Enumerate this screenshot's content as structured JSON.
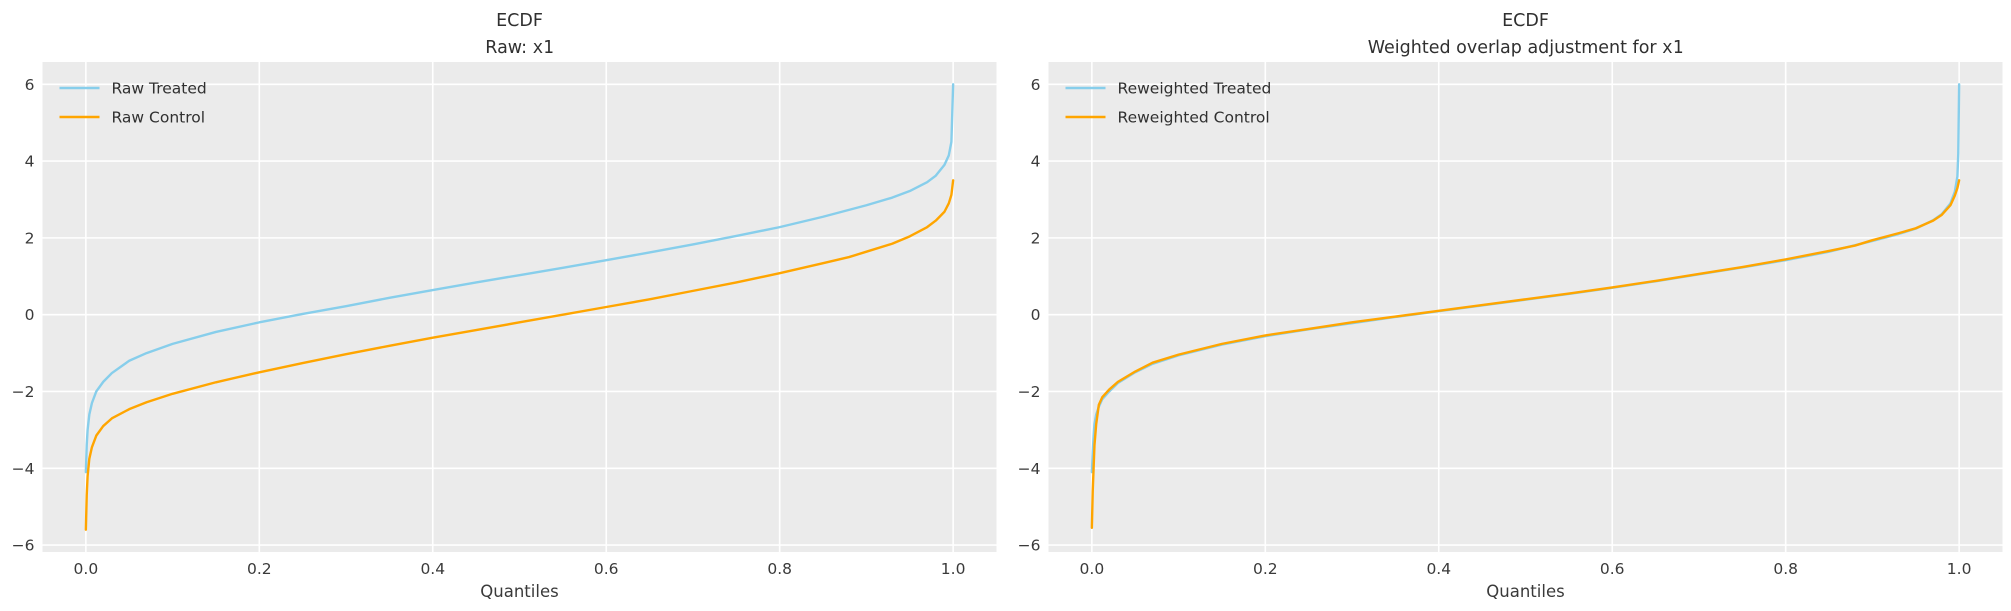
{
  "figure": {
    "background": "#ffffff",
    "plot_background": "#ebebeb",
    "grid_color": "#ffffff",
    "tick_color": "#3a3a3a",
    "title_color": "#303030",
    "treated_color": "#87CEEB",
    "control_color": "#FFA500"
  },
  "chart_data": [
    {
      "type": "line",
      "title_line1": "ECDF",
      "title_line2_prefix": "Raw: ",
      "title_line2_code": "x1",
      "xlabel": "Quantiles",
      "ylabel": "",
      "xlim": [
        -0.05,
        1.05
      ],
      "ylim": [
        -6.18,
        6.58
      ],
      "xticks": [
        0.0,
        0.2,
        0.4,
        0.6,
        0.8,
        1.0
      ],
      "xtick_labels": [
        "0.0",
        "0.2",
        "0.4",
        "0.6",
        "0.8",
        "1.0"
      ],
      "yticks": [
        6,
        4,
        2,
        0,
        -2,
        -4,
        -6
      ],
      "ytick_labels": [
        "6",
        "4",
        "2",
        "0",
        "−2",
        "−4",
        "−6"
      ],
      "grid": true,
      "legend_position": "upper left",
      "series": [
        {
          "name": "Raw Treated",
          "color": "#87CEEB",
          "points": [
            [
              0,
              -4.1
            ],
            [
              0.001,
              -3.4
            ],
            [
              0.002,
              -3.0
            ],
            [
              0.004,
              -2.6
            ],
            [
              0.007,
              -2.3
            ],
            [
              0.012,
              -2.0
            ],
            [
              0.02,
              -1.75
            ],
            [
              0.03,
              -1.52
            ],
            [
              0.05,
              -1.2
            ],
            [
              0.07,
              -1.0
            ],
            [
              0.1,
              -0.76
            ],
            [
              0.15,
              -0.45
            ],
            [
              0.2,
              -0.2
            ],
            [
              0.25,
              0.02
            ],
            [
              0.3,
              0.22
            ],
            [
              0.35,
              0.44
            ],
            [
              0.4,
              0.64
            ],
            [
              0.45,
              0.84
            ],
            [
              0.5,
              1.03
            ],
            [
              0.55,
              1.22
            ],
            [
              0.6,
              1.42
            ],
            [
              0.65,
              1.62
            ],
            [
              0.7,
              1.83
            ],
            [
              0.75,
              2.05
            ],
            [
              0.8,
              2.28
            ],
            [
              0.85,
              2.55
            ],
            [
              0.9,
              2.85
            ],
            [
              0.93,
              3.05
            ],
            [
              0.95,
              3.22
            ],
            [
              0.97,
              3.45
            ],
            [
              0.98,
              3.62
            ],
            [
              0.99,
              3.9
            ],
            [
              0.995,
              4.15
            ],
            [
              0.998,
              4.5
            ],
            [
              1.0,
              6.0
            ]
          ]
        },
        {
          "name": "Raw Control",
          "color": "#FFA500",
          "points": [
            [
              0,
              -5.6
            ],
            [
              0.001,
              -4.7
            ],
            [
              0.002,
              -4.2
            ],
            [
              0.004,
              -3.75
            ],
            [
              0.007,
              -3.45
            ],
            [
              0.012,
              -3.15
            ],
            [
              0.02,
              -2.9
            ],
            [
              0.03,
              -2.7
            ],
            [
              0.05,
              -2.46
            ],
            [
              0.07,
              -2.28
            ],
            [
              0.1,
              -2.06
            ],
            [
              0.15,
              -1.76
            ],
            [
              0.2,
              -1.5
            ],
            [
              0.25,
              -1.26
            ],
            [
              0.3,
              -1.03
            ],
            [
              0.35,
              -0.81
            ],
            [
              0.4,
              -0.6
            ],
            [
              0.45,
              -0.4
            ],
            [
              0.5,
              -0.2
            ],
            [
              0.55,
              0.0
            ],
            [
              0.6,
              0.2
            ],
            [
              0.65,
              0.4
            ],
            [
              0.7,
              0.62
            ],
            [
              0.75,
              0.84
            ],
            [
              0.8,
              1.08
            ],
            [
              0.85,
              1.34
            ],
            [
              0.88,
              1.5
            ],
            [
              0.9,
              1.64
            ],
            [
              0.93,
              1.85
            ],
            [
              0.95,
              2.04
            ],
            [
              0.97,
              2.28
            ],
            [
              0.98,
              2.45
            ],
            [
              0.99,
              2.68
            ],
            [
              0.995,
              2.9
            ],
            [
              0.998,
              3.12
            ],
            [
              1.0,
              3.5
            ]
          ]
        }
      ]
    },
    {
      "type": "line",
      "title_line1": "ECDF",
      "title_line2_prefix": "Weighted overlap adjustment for ",
      "title_line2_code": "x1",
      "xlabel": "Quantiles",
      "ylabel": "",
      "xlim": [
        -0.05,
        1.05
      ],
      "ylim": [
        -6.18,
        6.58
      ],
      "xticks": [
        0.0,
        0.2,
        0.4,
        0.6,
        0.8,
        1.0
      ],
      "xtick_labels": [
        "0.0",
        "0.2",
        "0.4",
        "0.6",
        "0.8",
        "1.0"
      ],
      "yticks": [
        6,
        4,
        2,
        0,
        -2,
        -4,
        -6
      ],
      "ytick_labels": [
        "6",
        "4",
        "2",
        "0",
        "−2",
        "−4",
        "−6"
      ],
      "grid": true,
      "legend_position": "upper left",
      "series": [
        {
          "name": "Reweighted Treated",
          "color": "#87CEEB",
          "points": [
            [
              0,
              -4.1
            ],
            [
              0.001,
              -3.6
            ],
            [
              0.002,
              -3.15
            ],
            [
              0.003,
              -2.85
            ],
            [
              0.005,
              -2.6
            ],
            [
              0.008,
              -2.4
            ],
            [
              0.012,
              -2.2
            ],
            [
              0.02,
              -2.0
            ],
            [
              0.03,
              -1.78
            ],
            [
              0.05,
              -1.5
            ],
            [
              0.07,
              -1.28
            ],
            [
              0.1,
              -1.06
            ],
            [
              0.15,
              -0.78
            ],
            [
              0.2,
              -0.56
            ],
            [
              0.25,
              -0.38
            ],
            [
              0.3,
              -0.22
            ],
            [
              0.35,
              -0.06
            ],
            [
              0.4,
              0.09
            ],
            [
              0.45,
              0.24
            ],
            [
              0.5,
              0.39
            ],
            [
              0.55,
              0.54
            ],
            [
              0.6,
              0.7
            ],
            [
              0.65,
              0.87
            ],
            [
              0.7,
              1.05
            ],
            [
              0.75,
              1.23
            ],
            [
              0.8,
              1.42
            ],
            [
              0.85,
              1.64
            ],
            [
              0.9,
              1.92
            ],
            [
              0.93,
              2.1
            ],
            [
              0.95,
              2.24
            ],
            [
              0.97,
              2.46
            ],
            [
              0.98,
              2.62
            ],
            [
              0.99,
              2.9
            ],
            [
              0.995,
              3.2
            ],
            [
              0.998,
              3.6
            ],
            [
              0.999,
              4.2
            ],
            [
              1.0,
              6.0
            ]
          ]
        },
        {
          "name": "Reweighted Control",
          "color": "#FFA500",
          "points": [
            [
              0,
              -5.55
            ],
            [
              0.001,
              -4.6
            ],
            [
              0.002,
              -4.0
            ],
            [
              0.003,
              -3.4
            ],
            [
              0.005,
              -2.85
            ],
            [
              0.008,
              -2.35
            ],
            [
              0.012,
              -2.15
            ],
            [
              0.02,
              -1.95
            ],
            [
              0.03,
              -1.75
            ],
            [
              0.05,
              -1.48
            ],
            [
              0.07,
              -1.25
            ],
            [
              0.1,
              -1.04
            ],
            [
              0.15,
              -0.76
            ],
            [
              0.2,
              -0.54
            ],
            [
              0.25,
              -0.37
            ],
            [
              0.3,
              -0.2
            ],
            [
              0.35,
              -0.05
            ],
            [
              0.4,
              0.1
            ],
            [
              0.45,
              0.25
            ],
            [
              0.5,
              0.4
            ],
            [
              0.55,
              0.55
            ],
            [
              0.6,
              0.71
            ],
            [
              0.65,
              0.88
            ],
            [
              0.7,
              1.06
            ],
            [
              0.75,
              1.24
            ],
            [
              0.8,
              1.44
            ],
            [
              0.85,
              1.66
            ],
            [
              0.88,
              1.8
            ],
            [
              0.9,
              1.94
            ],
            [
              0.93,
              2.12
            ],
            [
              0.95,
              2.25
            ],
            [
              0.97,
              2.45
            ],
            [
              0.98,
              2.6
            ],
            [
              0.99,
              2.85
            ],
            [
              0.995,
              3.1
            ],
            [
              0.998,
              3.3
            ],
            [
              1.0,
              3.5
            ]
          ]
        }
      ]
    }
  ]
}
